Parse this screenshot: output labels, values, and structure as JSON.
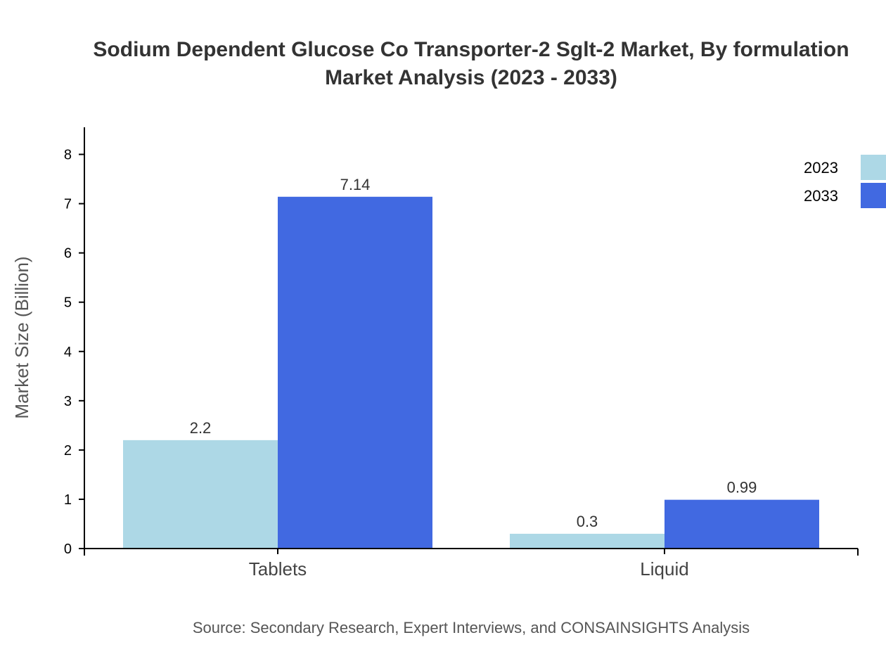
{
  "chart_data": {
    "type": "bar",
    "title_lines": [
      "Sodium Dependent Glucose Co Transporter-2 Sglt-2 Market, By formulation",
      "Market Analysis (2023 - 2033)"
    ],
    "xlabel": "",
    "ylabel": "Market Size (Billion)",
    "categories": [
      "Tablets",
      "Liquid"
    ],
    "series": [
      {
        "name": "2023",
        "values": [
          2.2,
          0.3
        ],
        "color": "#add8e6"
      },
      {
        "name": "2033",
        "values": [
          7.14,
          0.99
        ],
        "color": "#4169e1"
      }
    ],
    "ylim": [
      0,
      8.55
    ],
    "yticks": [
      0,
      1,
      2,
      3,
      4,
      5,
      6,
      7,
      8
    ],
    "grid": false,
    "legend_position": "top-right",
    "source": "Source: Secondary Research, Expert Interviews, and CONSAINSIGHTS Analysis"
  }
}
